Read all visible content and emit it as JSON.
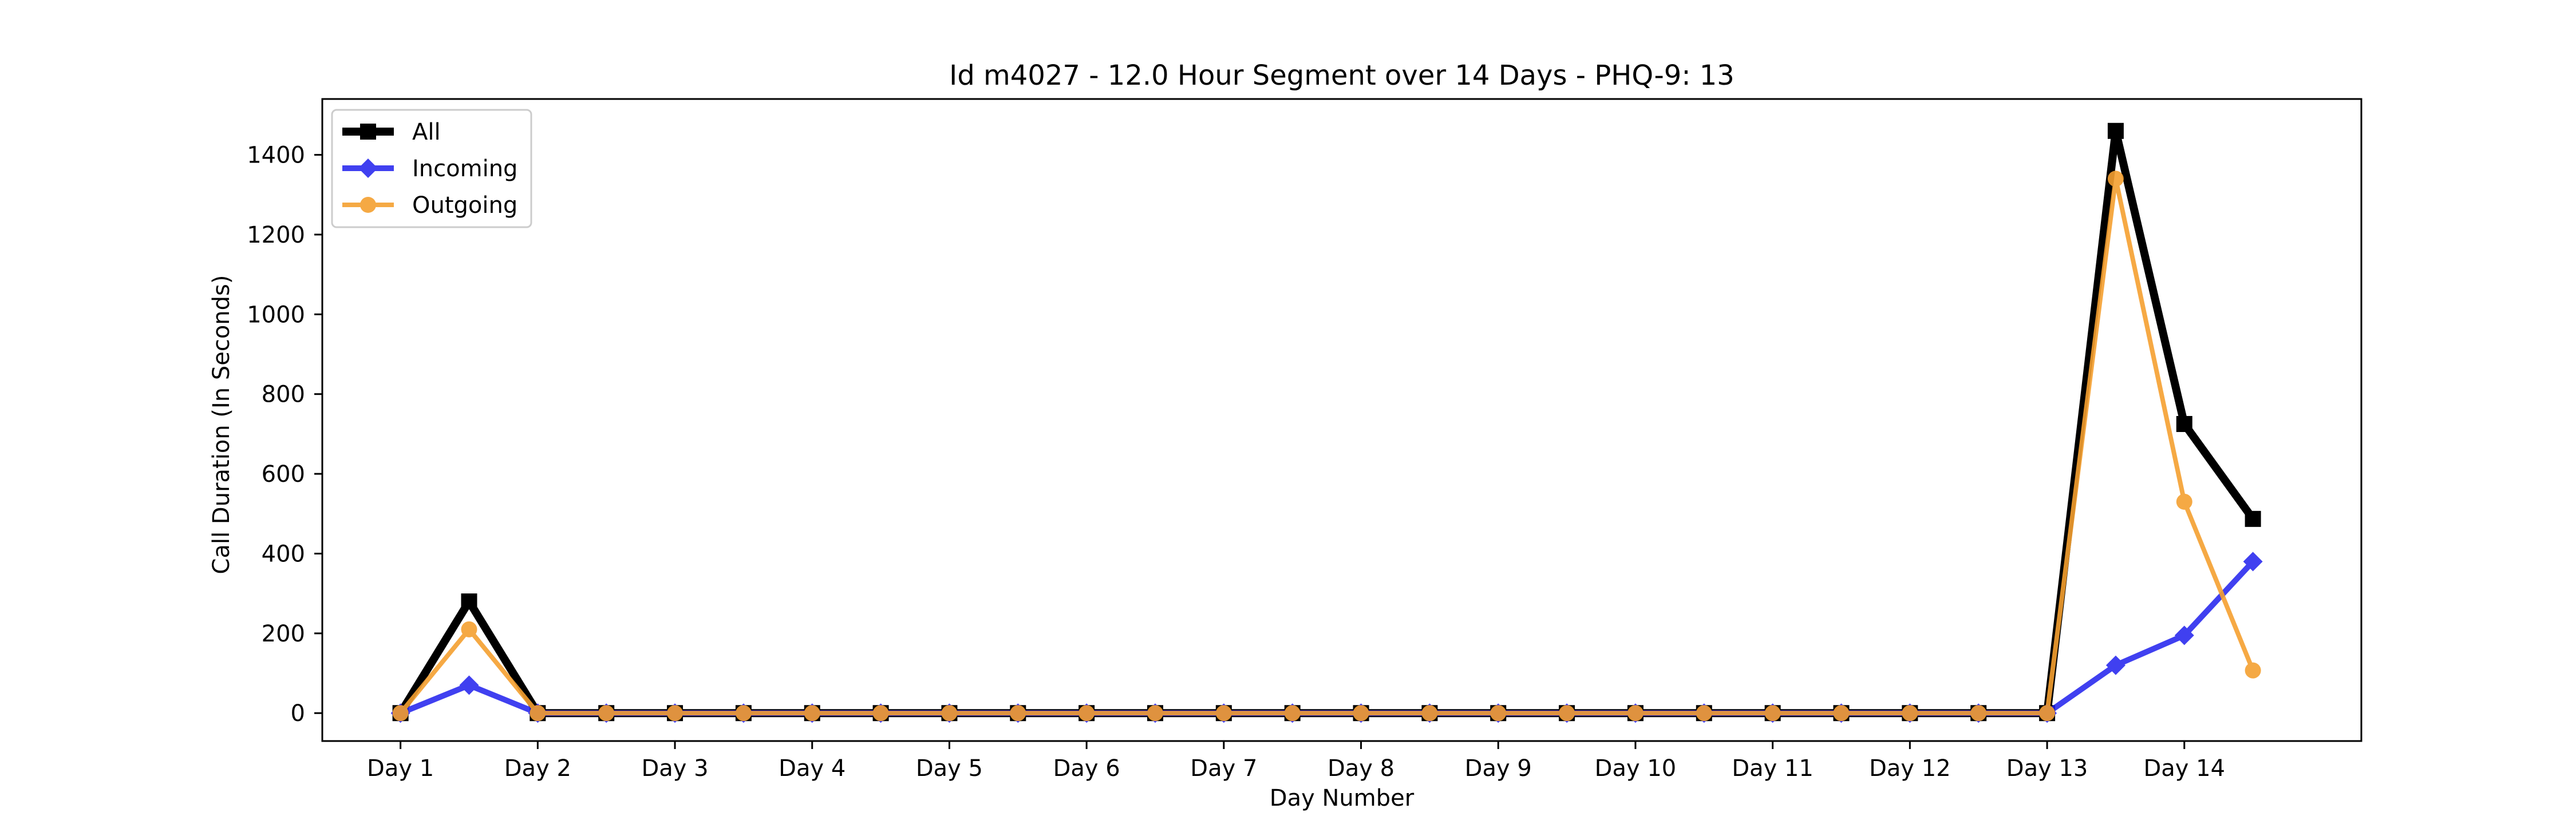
{
  "chart_data": {
    "type": "line",
    "title": "Id m4027 - 12.0 Hour Segment over 14 Days - PHQ-9: 13",
    "xlabel": "Day Number",
    "ylabel": "Call Duration (In Seconds)",
    "x": [
      1,
      1.5,
      2,
      2.5,
      3,
      3.5,
      4,
      4.5,
      5,
      5.5,
      6,
      6.5,
      7,
      7.5,
      8,
      8.5,
      9,
      9.5,
      10,
      10.5,
      11,
      11.5,
      12,
      12.5,
      13,
      13.5,
      14,
      14.5
    ],
    "xlim": [
      0.43,
      15.29
    ],
    "ylim": [
      -70,
      1540
    ],
    "x_ticks": [
      1,
      2,
      3,
      4,
      5,
      6,
      7,
      8,
      9,
      10,
      11,
      12,
      13,
      14
    ],
    "x_tick_labels": [
      "Day 1",
      "Day 2",
      "Day 3",
      "Day 4",
      "Day 5",
      "Day 6",
      "Day 7",
      "Day 8",
      "Day 9",
      "Day 10",
      "Day 11",
      "Day 12",
      "Day 13",
      "Day 14"
    ],
    "y_ticks": [
      0,
      200,
      400,
      600,
      800,
      1000,
      1200,
      1400
    ],
    "y_tick_labels": [
      "0",
      "200",
      "400",
      "600",
      "800",
      "1000",
      "1200",
      "1400"
    ],
    "grid": false,
    "legend_position": "top-left",
    "series": [
      {
        "name": "All",
        "color": "#000000",
        "marker": "square",
        "values": [
          0,
          280,
          0,
          0,
          0,
          0,
          0,
          0,
          0,
          0,
          0,
          0,
          0,
          0,
          0,
          0,
          0,
          0,
          0,
          0,
          0,
          0,
          0,
          0,
          0,
          1460,
          725,
          487
        ]
      },
      {
        "name": "Incoming",
        "color": "#1f1fee",
        "marker": "diamond",
        "values": [
          0,
          70,
          0,
          0,
          0,
          0,
          0,
          0,
          0,
          0,
          0,
          0,
          0,
          0,
          0,
          0,
          0,
          0,
          0,
          0,
          0,
          0,
          0,
          0,
          0,
          120,
          195,
          380
        ]
      },
      {
        "name": "Outgoing",
        "color": "#f5a030",
        "marker": "circle",
        "values": [
          0,
          210,
          0,
          0,
          0,
          0,
          0,
          0,
          0,
          0,
          0,
          0,
          0,
          0,
          0,
          0,
          0,
          0,
          0,
          0,
          0,
          0,
          0,
          0,
          0,
          1340,
          530,
          107
        ]
      }
    ]
  }
}
